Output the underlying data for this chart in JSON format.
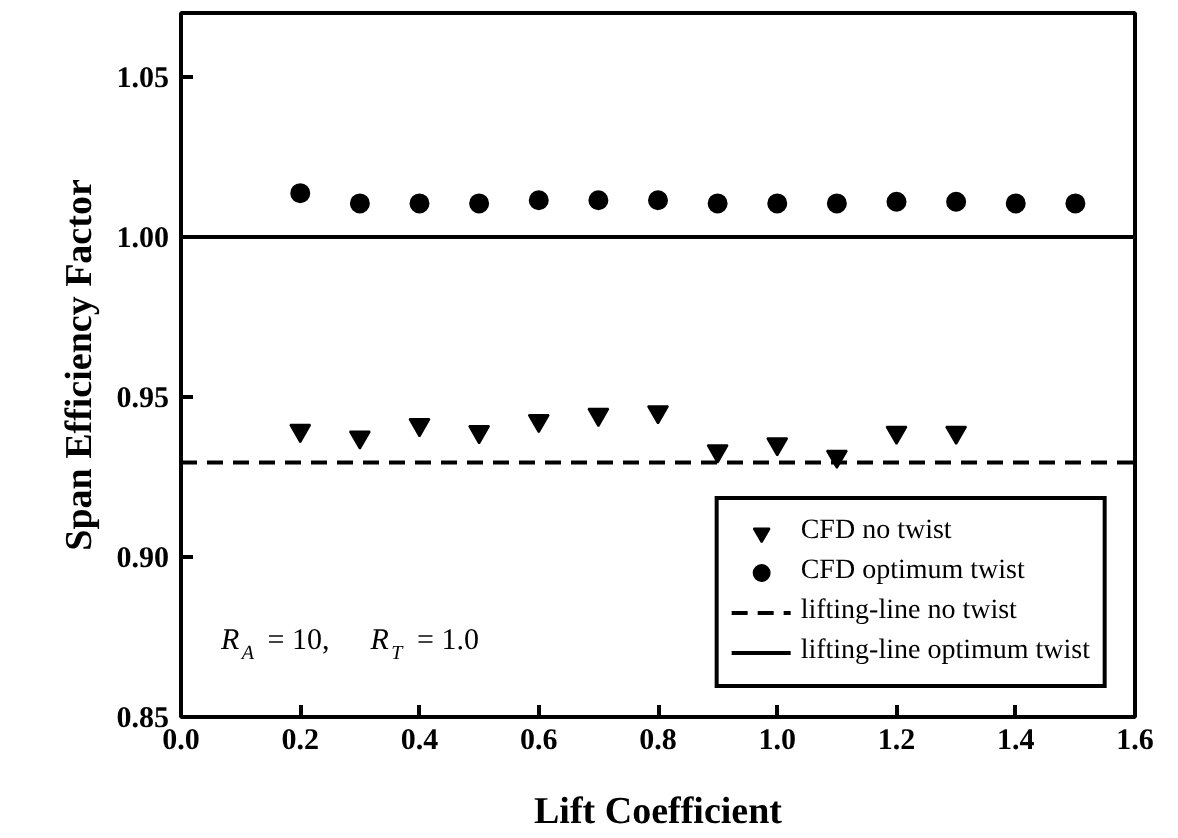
{
  "chart_data": {
    "type": "scatter",
    "xlabel": "Lift Coefficient",
    "ylabel": "Span Efficiency Factor",
    "xlim": [
      0.0,
      1.6
    ],
    "ylim": [
      0.85,
      1.07
    ],
    "xticks": [
      {
        "value": 0.0,
        "label": "0.0"
      },
      0.2,
      0.4,
      0.6,
      0.8,
      {
        "value": 1.0,
        "label": "1.0"
      },
      1.2,
      1.4,
      1.6
    ],
    "yticks": [
      0.85,
      {
        "value": 0.9,
        "label": "0.90"
      },
      0.95,
      {
        "value": 1.0,
        "label": "1.00"
      },
      1.05
    ],
    "grid": false,
    "legend": "bottom right",
    "annotations": [
      "R$_{A}$ = 10,  R$_{T}$ = 1.0"
    ],
    "series": [
      {
        "name": "CFD no twist",
        "type": "scatter",
        "marker": "triangle",
        "color": "#000000",
        "x": [
          0.2,
          0.3,
          0.4,
          0.5,
          0.6,
          0.7,
          0.8,
          0.9,
          1.0,
          1.1,
          1.2,
          1.3
        ],
        "values": [
          0.9395,
          0.9374,
          0.9413,
          0.9391,
          0.9426,
          0.9445,
          0.9453,
          0.9331,
          0.9353,
          0.9314,
          0.9389,
          0.9389
        ]
      },
      {
        "name": "CFD optimum twist",
        "type": "scatter",
        "marker": "circle",
        "color": "#000000",
        "x": [
          0.2,
          0.3,
          0.4,
          0.5,
          0.6,
          0.7,
          0.8,
          0.9,
          1.0,
          1.1,
          1.2,
          1.3,
          1.4,
          1.5
        ],
        "values": [
          1.0137,
          1.0105,
          1.0105,
          1.0105,
          1.0115,
          1.0115,
          1.0115,
          1.0105,
          1.0105,
          1.0105,
          1.011,
          1.011,
          1.0105,
          1.0105
        ]
      },
      {
        "name": "lifting-line no twist",
        "type": "line",
        "line_style": "dashed",
        "color": "#000000",
        "x": [
          0.0,
          1.6
        ],
        "values": [
          0.9295,
          0.9295
        ]
      },
      {
        "name": "lifting-line optimum twist",
        "type": "line",
        "line_style": "solid",
        "color": "#000000",
        "x": [
          0.0,
          1.6
        ],
        "values": [
          1.0,
          1.0
        ]
      }
    ]
  }
}
